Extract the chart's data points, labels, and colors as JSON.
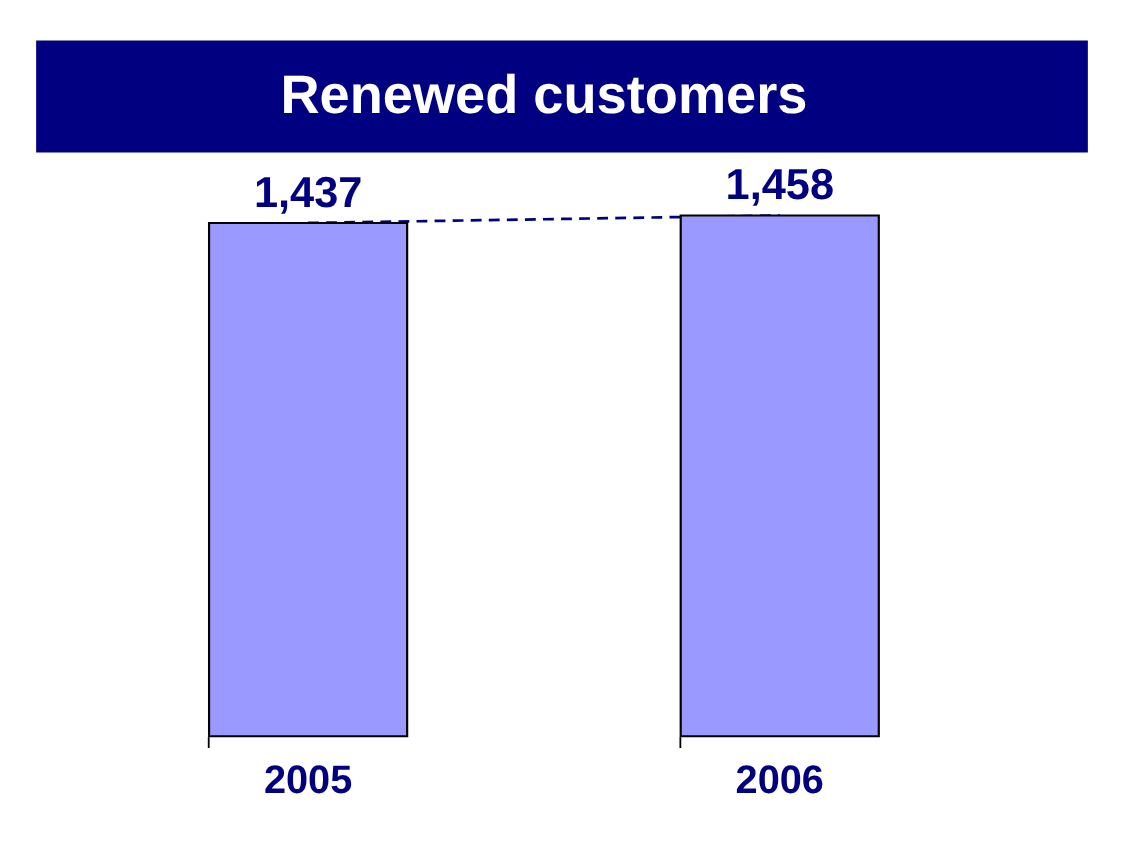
{
  "chart_data": {
    "type": "bar",
    "title": "Renewed customers",
    "categories": [
      "2005",
      "2006"
    ],
    "series": [
      {
        "color": "#9999ff",
        "values": [
          1437,
          1458
        ],
        "value_labels": [
          "1,437",
          "1,458"
        ]
      },
      {
        "type": "line",
        "color": "#000080",
        "values": [
          1437,
          1458
        ],
        "line_style": "dashed"
      }
    ],
    "tick_labels": "x",
    "grid": false
  }
}
